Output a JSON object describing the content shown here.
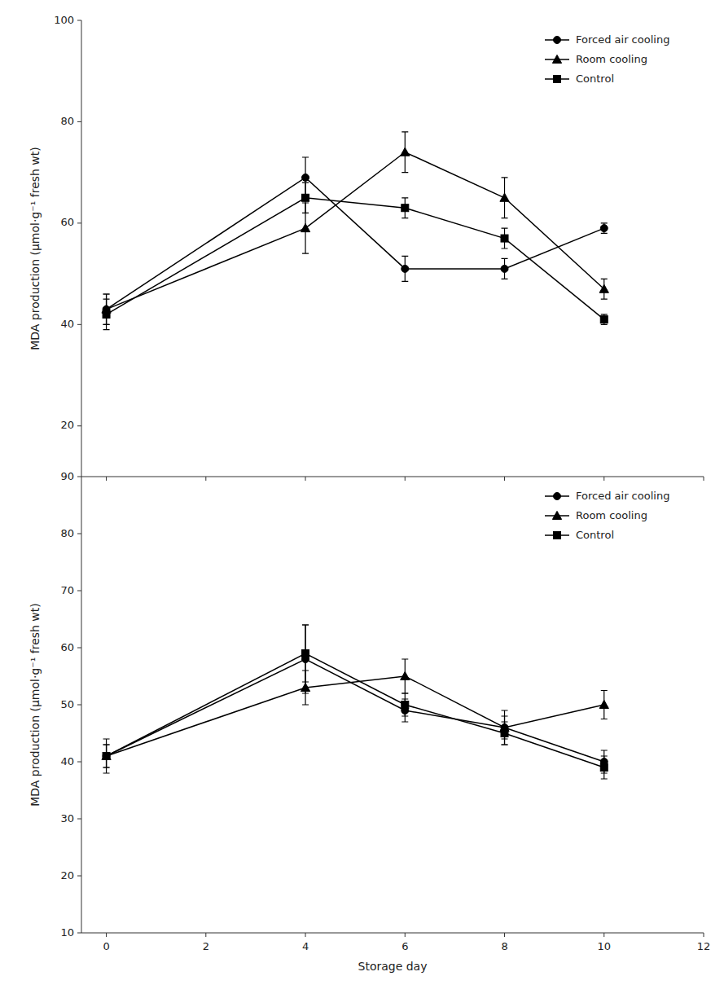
{
  "chart_data": [
    {
      "type": "line",
      "x": [
        0,
        4,
        6,
        8,
        10
      ],
      "series": [
        {
          "name": "Forced air cooling",
          "color": "#000000",
          "marker": "circle",
          "values": [
            43,
            69,
            51,
            51,
            59
          ],
          "errors": [
            3.0,
            4.0,
            2.5,
            2.0,
            1.0
          ]
        },
        {
          "name": "Room cooling",
          "color": "#000000",
          "marker": "triangle",
          "values": [
            43,
            59,
            74,
            65,
            47
          ],
          "errors": [
            3.0,
            5.0,
            4.0,
            4.0,
            2.0
          ]
        },
        {
          "name": "Control",
          "color": "#000000",
          "marker": "square",
          "values": [
            42,
            65,
            63,
            57,
            41
          ],
          "errors": [
            3.0,
            3.0,
            2.0,
            2.0,
            1.0
          ]
        }
      ],
      "xlim": [
        -0.5,
        12
      ],
      "xticks": [
        0,
        2,
        4,
        6,
        8,
        10,
        12
      ],
      "ylim": [
        10,
        100
      ],
      "yticks": [
        20,
        40,
        60,
        80,
        100
      ],
      "ylabel": "MDA production (μmol·g⁻¹ fresh wt)",
      "tick_labels": "y",
      "legend": "upper right",
      "grid": false
    },
    {
      "type": "line",
      "x": [
        0,
        4,
        6,
        8,
        10
      ],
      "series": [
        {
          "name": "Forced air cooling",
          "color": "#000000",
          "marker": "circle",
          "values": [
            41,
            58,
            49,
            46,
            40
          ],
          "errors": [
            2.0,
            6.0,
            2.0,
            3.0,
            2.0
          ]
        },
        {
          "name": "Room cooling",
          "color": "#000000",
          "marker": "triangle",
          "values": [
            41,
            53,
            55,
            46,
            50
          ],
          "errors": [
            2.0,
            3.0,
            3.0,
            2.0,
            2.5
          ]
        },
        {
          "name": "Control",
          "color": "#000000",
          "marker": "square",
          "values": [
            41,
            59,
            50,
            45,
            39
          ],
          "errors": [
            3.0,
            5.0,
            2.0,
            2.0,
            2.0
          ]
        }
      ],
      "xlim": [
        -0.5,
        12
      ],
      "xticks": [
        0,
        2,
        4,
        6,
        8,
        10,
        12
      ],
      "ylim": [
        10,
        90
      ],
      "yticks": [
        10,
        20,
        30,
        40,
        50,
        60,
        70,
        80,
        90
      ],
      "ylabel": "MDA production (μmol·g⁻¹ fresh wt)",
      "xlabel": "Storage day",
      "legend": "upper right",
      "grid": false
    }
  ]
}
